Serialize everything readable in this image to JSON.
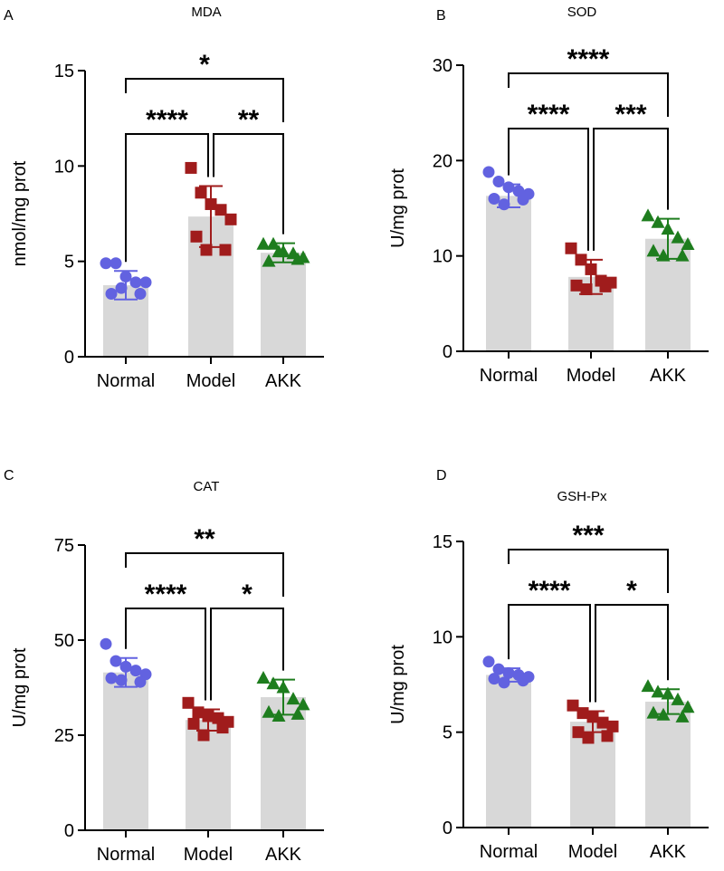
{
  "figure": {
    "colors": {
      "normal": "#6262e0",
      "model": "#a01c1c",
      "akk": "#1e7d1e",
      "bar": "#d8d8d8"
    }
  },
  "chart_data": [
    {
      "panel": "A",
      "type": "bar",
      "title": "MDA",
      "ylabel": "nmol/mg prot",
      "categories": [
        "Normal",
        "Model",
        "AKK"
      ],
      "ylim": [
        0,
        15
      ],
      "yticks": [
        0,
        5,
        10,
        15
      ],
      "means": [
        3.75,
        7.35,
        5.45
      ],
      "sd": [
        0.75,
        1.6,
        0.5
      ],
      "points": [
        [
          4.9,
          4.9,
          4.2,
          3.9,
          3.9,
          3.3,
          3.3,
          3.6
        ],
        [
          9.9,
          8.6,
          8.0,
          7.7,
          7.2,
          6.3,
          5.6,
          5.6
        ],
        [
          5.9,
          5.9,
          5.5,
          5.4,
          5.2,
          5.0,
          5.1,
          5.5
        ]
      ],
      "comparisons": [
        {
          "from": 0,
          "to": 2,
          "label": "*",
          "level": 3
        },
        {
          "from": 0,
          "to": 1,
          "label": "****",
          "level": 2
        },
        {
          "from": 1,
          "to": 2,
          "label": "**",
          "level": 2
        }
      ]
    },
    {
      "panel": "B",
      "type": "bar",
      "title": "SOD",
      "ylabel": "U/mg prot",
      "categories": [
        "Normal",
        "Model",
        "AKK"
      ],
      "ylim": [
        0,
        30
      ],
      "yticks": [
        0,
        10,
        20,
        30
      ],
      "means": [
        16.3,
        7.8,
        11.8
      ],
      "sd": [
        1.2,
        1.8,
        2.1
      ],
      "points": [
        [
          18.8,
          17.8,
          17.2,
          16.8,
          16.5,
          16.0,
          15.9,
          15.4
        ],
        [
          10.8,
          9.6,
          8.6,
          7.4,
          7.2,
          6.9,
          6.8,
          6.5
        ],
        [
          14.2,
          13.5,
          12.8,
          11.9,
          11.2,
          10.5,
          10.0,
          10.0
        ]
      ],
      "comparisons": [
        {
          "from": 0,
          "to": 2,
          "label": "****",
          "level": 3
        },
        {
          "from": 0,
          "to": 1,
          "label": "****",
          "level": 2
        },
        {
          "from": 1,
          "to": 2,
          "label": "***",
          "level": 2
        }
      ]
    },
    {
      "panel": "C",
      "type": "bar",
      "title": "CAT",
      "ylabel": "U/mg prot",
      "categories": [
        "Normal",
        "Model",
        "AKK"
      ],
      "ylim": [
        0,
        75
      ],
      "yticks": [
        0,
        25,
        50,
        75
      ],
      "means": [
        41.5,
        29.0,
        35.0
      ],
      "sd": [
        3.8,
        2.8,
        4.6
      ],
      "points": [
        [
          49.0,
          44.5,
          43.0,
          42.0,
          41.0,
          40.0,
          39.0,
          39.5
        ],
        [
          33.5,
          31.0,
          30.0,
          29.5,
          28.5,
          28.0,
          27.0,
          25.0
        ],
        [
          40.0,
          38.5,
          37.5,
          34.5,
          33.0,
          31.0,
          30.5,
          30.0
        ]
      ],
      "comparisons": [
        {
          "from": 0,
          "to": 2,
          "label": "**",
          "level": 3
        },
        {
          "from": 0,
          "to": 1,
          "label": "****",
          "level": 2
        },
        {
          "from": 1,
          "to": 2,
          "label": "*",
          "level": 2
        }
      ]
    },
    {
      "panel": "D",
      "type": "bar",
      "title": "GSH-Px",
      "ylabel": "U/mg prot",
      "categories": [
        "Normal",
        "Model",
        "AKK"
      ],
      "ylim": [
        0,
        15
      ],
      "yticks": [
        0,
        5,
        10,
        15
      ],
      "means": [
        8.0,
        5.55,
        6.6
      ],
      "sd": [
        0.35,
        0.55,
        0.65
      ],
      "points": [
        [
          8.7,
          8.3,
          8.1,
          8.0,
          7.9,
          7.8,
          7.7,
          7.6
        ],
        [
          6.4,
          6.0,
          5.8,
          5.5,
          5.3,
          5.0,
          4.8,
          4.7
        ],
        [
          7.4,
          7.1,
          7.0,
          6.7,
          6.3,
          6.0,
          5.8,
          5.9
        ]
      ],
      "comparisons": [
        {
          "from": 0,
          "to": 2,
          "label": "***",
          "level": 3
        },
        {
          "from": 0,
          "to": 1,
          "label": "****",
          "level": 2
        },
        {
          "from": 1,
          "to": 2,
          "label": "*",
          "level": 2
        }
      ]
    }
  ]
}
